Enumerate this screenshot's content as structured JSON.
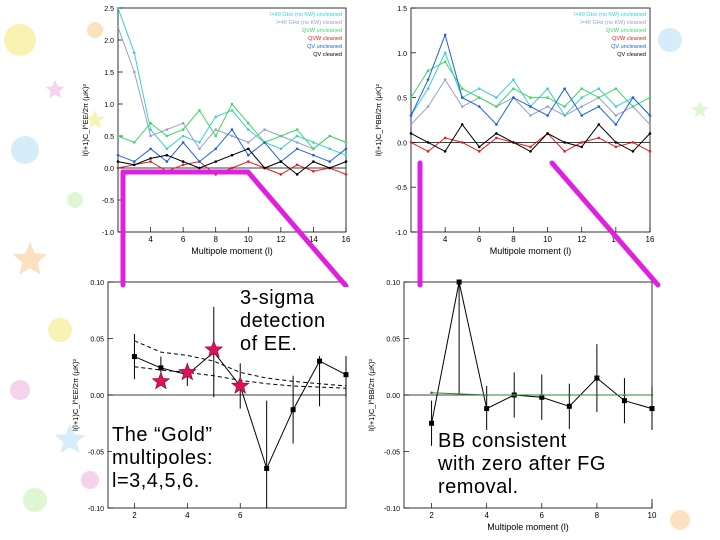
{
  "annotations": {
    "detection": [
      "3-sigma",
      "detection",
      "of EE."
    ],
    "gold": [
      "The “Gold”",
      "multipoles:",
      "l=3,4,5,6."
    ],
    "bb": [
      "BB consistent",
      "with zero after FG",
      "removal."
    ]
  },
  "colors": {
    "accent_line": "#e020e0",
    "star": "#e0105a",
    "deco": [
      "#f8f0a0",
      "#f4c8e8",
      "#cce8f8",
      "#d8f4c8",
      "#fcd8b0"
    ]
  },
  "chart_data": [
    {
      "type": "line",
      "xlabel": "Multipole moment (l)",
      "ylabel": "l(l+1)C_l^EE/2π (μK)²",
      "xlim": [
        2,
        16
      ],
      "ylim": [
        -1.0,
        2.5
      ],
      "xticks": [
        4,
        6,
        8,
        10,
        12,
        14,
        16
      ],
      "yticks": [
        -1.0,
        -0.5,
        0.0,
        0.5,
        1.0,
        1.5,
        2.0,
        2.5
      ],
      "xtick_labels": [
        "4",
        "6",
        "8",
        "10",
        "12",
        "14",
        "16"
      ],
      "ytick_labels": [
        "-1.0",
        "-0.5",
        "0.0",
        "0.5",
        "1.0",
        "1.5",
        "2.0",
        "2.5"
      ],
      "legend": [
        "l=40 GHz (no KW) uncleaned",
        "l=40 GHz (no KW) cleaned",
        "QVW uncleaned",
        "QVW cleaned",
        "QV uncleaned",
        "QV cleaned"
      ],
      "legend_colors": [
        "#3ad0d0",
        "#9aa0c8",
        "#40d860",
        "#e02020",
        "#2060e0",
        "#000000"
      ],
      "legend_position": "top-right",
      "x": [
        2,
        3,
        4,
        5,
        6,
        7,
        8,
        9,
        10,
        11,
        12,
        13,
        14,
        15,
        16
      ],
      "series": [
        {
          "values": [
            2.5,
            1.8,
            0.6,
            0.3,
            0.5,
            0.4,
            0.8,
            0.9,
            0.6,
            0.4,
            0.3,
            0.5,
            0.4,
            0.3,
            0.2
          ]
        },
        {
          "values": [
            2.2,
            1.5,
            0.5,
            0.6,
            0.7,
            0.3,
            0.6,
            0.5,
            0.4,
            0.6,
            0.5,
            0.4,
            0.3,
            0.5,
            0.4
          ]
        },
        {
          "values": [
            0.5,
            0.4,
            0.7,
            0.5,
            0.6,
            0.9,
            0.5,
            1.0,
            0.7,
            0.4,
            0.5,
            0.6,
            0.3,
            0.5,
            0.4
          ]
        },
        {
          "values": [
            0.0,
            0.05,
            0.1,
            -0.05,
            0.05,
            0.1,
            -0.1,
            0.0,
            0.1,
            0.0,
            -0.1,
            0.05,
            -0.05,
            0.0,
            -0.1
          ]
        },
        {
          "values": [
            0.2,
            0.1,
            0.3,
            0.1,
            0.4,
            0.1,
            0.3,
            0.6,
            0.2,
            0.4,
            0.1,
            0.3,
            0.2,
            0.1,
            0.3
          ]
        },
        {
          "values": [
            0.1,
            0.05,
            0.15,
            0.2,
            0.1,
            0.0,
            0.1,
            0.2,
            0.3,
            0.0,
            0.1,
            -0.1,
            0.1,
            0.0,
            0.1
          ]
        }
      ]
    },
    {
      "type": "line",
      "xlabel": "Multipole moment (l)",
      "ylabel": "l(l+1)C_l^BB/2π (μK)²",
      "xlim": [
        2,
        16
      ],
      "ylim": [
        -1.0,
        1.5
      ],
      "xticks": [
        4,
        6,
        8,
        10,
        12,
        14,
        16
      ],
      "yticks": [
        -1.0,
        -0.5,
        0.0,
        0.5,
        1.0,
        1.5
      ],
      "xtick_labels": [
        "4",
        "6",
        "8",
        "10",
        "12",
        "14",
        "16"
      ],
      "ytick_labels": [
        "-1.0",
        "-0.5",
        "0.0",
        "0.5",
        "1.0",
        "1.5"
      ],
      "legend": [
        "l=40 GHz (no KW) uncleaned",
        "l=40 GHz (no KW) cleaned",
        "QVW uncleaned",
        "QVW cleaned",
        "QV uncleaned",
        "QV cleaned"
      ],
      "legend_colors": [
        "#3ad0d0",
        "#9aa0c8",
        "#40d860",
        "#e02020",
        "#2060e0",
        "#000000"
      ],
      "legend_position": "top-right",
      "x": [
        2,
        3,
        4,
        5,
        6,
        7,
        8,
        9,
        10,
        11,
        12,
        13,
        14,
        15,
        16
      ],
      "series": [
        {
          "values": [
            0.3,
            0.6,
            1.0,
            0.5,
            0.6,
            0.5,
            0.7,
            0.4,
            0.6,
            0.3,
            0.5,
            0.6,
            0.4,
            0.5,
            0.3
          ]
        },
        {
          "values": [
            0.2,
            0.4,
            0.7,
            0.4,
            0.5,
            0.4,
            0.5,
            0.3,
            0.4,
            0.3,
            0.4,
            0.5,
            0.3,
            0.4,
            0.2
          ]
        },
        {
          "values": [
            0.5,
            0.8,
            0.9,
            0.6,
            0.5,
            0.4,
            0.6,
            0.5,
            0.5,
            0.4,
            0.6,
            0.5,
            0.6,
            0.4,
            0.5
          ]
        },
        {
          "values": [
            0.0,
            -0.1,
            0.05,
            0.0,
            -0.1,
            0.05,
            0.0,
            -0.05,
            0.1,
            -0.1,
            0.0,
            0.05,
            -0.05,
            0.0,
            -0.1
          ]
        },
        {
          "values": [
            0.3,
            0.7,
            1.2,
            0.5,
            0.4,
            0.2,
            0.5,
            0.4,
            0.3,
            0.6,
            0.3,
            0.4,
            0.2,
            0.5,
            0.3
          ]
        },
        {
          "values": [
            0.1,
            0.0,
            -0.1,
            0.2,
            -0.05,
            0.1,
            0.0,
            -0.1,
            0.1,
            0.0,
            -0.05,
            0.2,
            0.0,
            -0.1,
            0.1
          ]
        }
      ]
    },
    {
      "type": "line",
      "xlabel": "",
      "ylabel": "l(l+1)C_l^EE/2π (μK)²",
      "xlim": [
        1,
        10
      ],
      "ylim": [
        -0.1,
        0.1
      ],
      "xticks": [
        2,
        4,
        6
      ],
      "yticks": [
        -0.1,
        -0.05,
        0.0,
        0.05,
        0.1
      ],
      "xtick_labels": [
        "2",
        "4",
        "6"
      ],
      "ytick_labels": [
        "-0.10",
        "-0.05",
        "0.00",
        "0.05",
        "0.10"
      ],
      "x": [
        2,
        3,
        4,
        5,
        6,
        7,
        8,
        9,
        10
      ],
      "series": [
        {
          "values": [
            0.034,
            0.024,
            0.018,
            0.038,
            0.008,
            -0.065,
            -0.013,
            0.03,
            0.018
          ],
          "errors": [
            0.02,
            0.01,
            0.01,
            0.04,
            0.02,
            0.06,
            0.03,
            0.04,
            0.02
          ]
        },
        {
          "values": [
            0.048,
            0.038,
            0.035,
            0.03,
            0.02,
            0.015,
            0.012,
            0.01,
            0.008
          ],
          "style": "dashed"
        },
        {
          "values": [
            0.025,
            0.022,
            0.02,
            0.017,
            0.013,
            0.01,
            0.008,
            0.007,
            0.006
          ],
          "style": "dashed"
        }
      ],
      "highlighted": [
        {
          "x": 3,
          "y": 0.012
        },
        {
          "x": 4,
          "y": 0.02
        },
        {
          "x": 5,
          "y": 0.04
        },
        {
          "x": 6,
          "y": 0.008
        }
      ]
    },
    {
      "type": "line",
      "xlabel": "Multipole moment (l)",
      "ylabel": "l(l+1)C_l^BB/2π (μK)²",
      "xlim": [
        1,
        10
      ],
      "ylim": [
        -0.1,
        0.1
      ],
      "xticks": [
        2,
        4,
        6,
        8,
        10
      ],
      "yticks": [
        -0.1,
        -0.05,
        0.0,
        0.05,
        0.1
      ],
      "xtick_labels": [
        "2",
        "4",
        "6",
        "8",
        "10"
      ],
      "ytick_labels": [
        "-0.10",
        "-0.05",
        "0.00",
        "0.05",
        "0.10"
      ],
      "x": [
        2,
        3,
        4,
        5,
        6,
        7,
        8,
        9,
        10
      ],
      "series": [
        {
          "values": [
            -0.025,
            0.1,
            -0.012,
            0.0,
            -0.002,
            -0.01,
            0.015,
            -0.005,
            -0.012
          ],
          "errors": [
            0.02,
            0.1,
            0.02,
            0.02,
            0.02,
            0.02,
            0.03,
            0.02,
            0.02
          ]
        },
        {
          "values": [
            0.002,
            0.001,
            0.0,
            0.0,
            0.0,
            0.0,
            0.0,
            0.0,
            0.0
          ],
          "style": "green"
        }
      ]
    }
  ]
}
